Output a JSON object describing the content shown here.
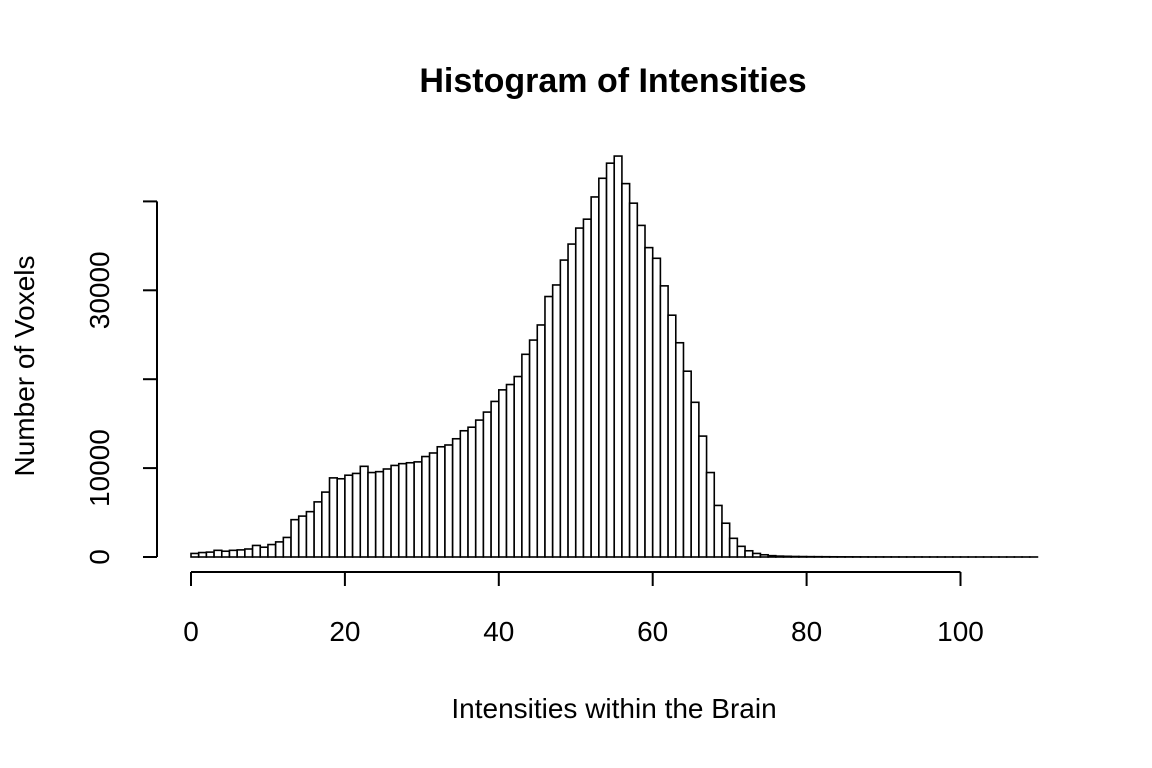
{
  "chart_data": {
    "type": "bar",
    "title": "Histogram of Intensities",
    "xlabel": "Intensities within the Brain",
    "ylabel": "Number of Voxels",
    "xlim": [
      0,
      110
    ],
    "ylim": [
      0,
      40000
    ],
    "xticks": [
      0,
      20,
      40,
      60,
      80,
      100
    ],
    "xtick_labels": [
      "0",
      "20",
      "40",
      "60",
      "80",
      "100"
    ],
    "yticks": [
      0,
      10000,
      20000,
      30000,
      40000
    ],
    "ytick_labels": [
      "0",
      "10000",
      "",
      "30000",
      ""
    ],
    "grid": false,
    "bin_width": 1,
    "bins_start": 0,
    "values": [
      400,
      500,
      550,
      750,
      650,
      750,
      800,
      900,
      1300,
      1100,
      1400,
      1700,
      2200,
      4200,
      4600,
      5100,
      6200,
      7300,
      8900,
      8800,
      9200,
      9400,
      10200,
      9500,
      9600,
      9900,
      10300,
      10500,
      10600,
      10700,
      11300,
      11700,
      12400,
      12600,
      13300,
      14200,
      14600,
      15400,
      16300,
      17500,
      18800,
      19400,
      20300,
      22800,
      24400,
      26100,
      29300,
      30600,
      33400,
      35200,
      37000,
      38000,
      40500,
      42600,
      44300,
      45100,
      42000,
      39800,
      37300,
      34800,
      33600,
      30500,
      27200,
      24100,
      20900,
      17400,
      13600,
      9500,
      5800,
      3800,
      2100,
      1200,
      700,
      400,
      250,
      150,
      100,
      80,
      60,
      50,
      40,
      35,
      30,
      25,
      20,
      18,
      15,
      12,
      10,
      9,
      8,
      7,
      6,
      5,
      5,
      4,
      4,
      3,
      3,
      3,
      2,
      2,
      2,
      2,
      1,
      1,
      1,
      1,
      1,
      1
    ]
  }
}
